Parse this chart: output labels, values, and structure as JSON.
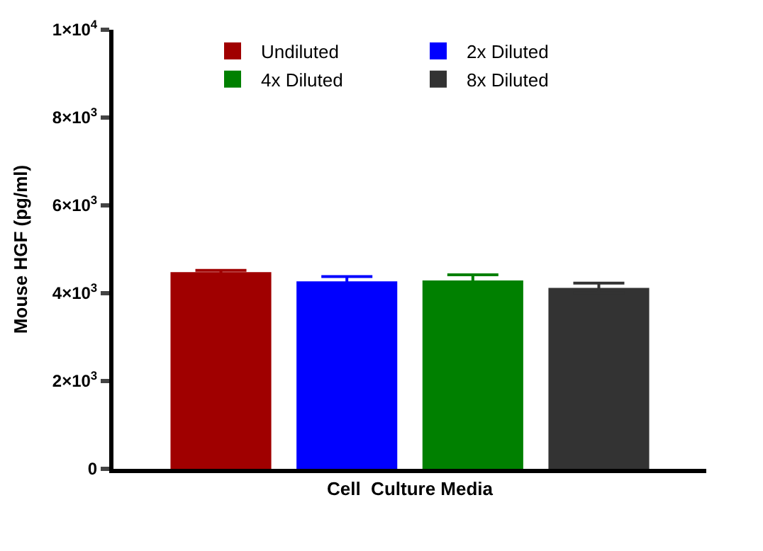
{
  "chart_data": {
    "type": "bar",
    "ylabel": "Mouse HGF (pg/ml)",
    "categories": [
      "Cell  Culture Media"
    ],
    "series": [
      {
        "name": "Undiluted",
        "color": "#a00000",
        "values": [
          4480
        ],
        "errors": [
          40
        ]
      },
      {
        "name": "2x Diluted",
        "color": "#0000ff",
        "values": [
          4270
        ],
        "errors": [
          110
        ]
      },
      {
        "name": "4x Diluted",
        "color": "#008000",
        "values": [
          4290
        ],
        "errors": [
          130
        ]
      },
      {
        "name": "8x Diluted",
        "color": "#333333",
        "values": [
          4120
        ],
        "errors": [
          110
        ]
      }
    ],
    "ylim": [
      0,
      10000
    ],
    "yticks": [
      {
        "value": 0,
        "label": "0"
      },
      {
        "value": 2000,
        "label": "2×10$^{3}$"
      },
      {
        "value": 4000,
        "label": "4×10$^{3}$"
      },
      {
        "value": 6000,
        "label": "6×10$^{3}$"
      },
      {
        "value": 8000,
        "label": "8×10$^{3}$"
      },
      {
        "value": 10000,
        "label": "1×10$^{4}$"
      }
    ],
    "legend": "top"
  }
}
